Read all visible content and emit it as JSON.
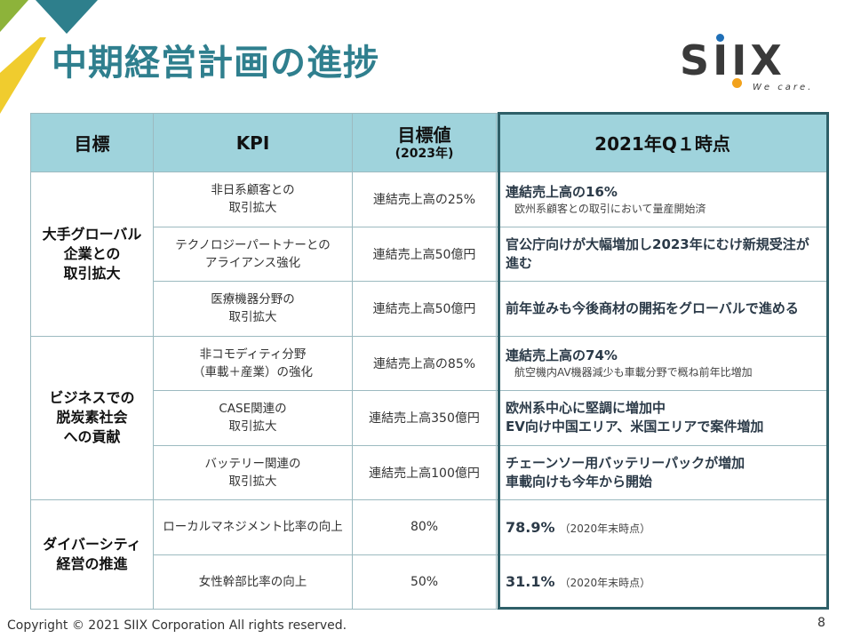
{
  "slide": {
    "title": "中期経営計画の進捗",
    "logo_text": "SIIX",
    "logo_tagline": "We care.",
    "copyright": "Copyright © 2021 SIIX Corporation All rights reserved.",
    "page_number": "8"
  },
  "colors": {
    "title": "#2f7f8e",
    "header_bg": "#9fd3dc",
    "accent_yellow": "#f0cc2e",
    "accent_green": "#8db33a",
    "accent_teal": "#2e7f8c"
  },
  "table": {
    "headers": {
      "goal": "目標",
      "kpi": "KPI",
      "target": "目標値",
      "target_year": "(2023年)",
      "status": "2021年Q１時点"
    },
    "groups": [
      {
        "goal": "大手グローバル\n企業との\n取引拡大",
        "rows": [
          {
            "kpi": "非日系顧客との\n取引拡大",
            "target": "連結売上高の25%",
            "status_main": "連結売上高の16%",
            "status_sub": "欧州系顧客との取引において量産開始済"
          },
          {
            "kpi": "テクノロジーパートナーとの\nアライアンス強化",
            "target": "連結売上高50億円",
            "status_main": "官公庁向けが大幅増加し2023年にむけ新規受注が進む",
            "status_sub": ""
          },
          {
            "kpi": "医療機器分野の\n取引拡大",
            "target": "連結売上高50億円",
            "status_main": "前年並みも今後商材の開拓をグローバルで進める",
            "status_sub": ""
          }
        ]
      },
      {
        "goal": "ビジネスでの\n脱炭素社会\nへの貢献",
        "rows": [
          {
            "kpi": "非コモディティ分野\n（車載＋産業）の強化",
            "target": "連結売上高の85%",
            "status_main": "連結売上高の74%",
            "status_sub": "航空機内AV機器減少も車載分野で概ね前年比増加"
          },
          {
            "kpi": "CASE関連の\n取引拡大",
            "target": "連結売上高350億円",
            "status_main": "欧州系中心に堅調に増加中",
            "status_sub": "",
            "status_main2": "EV向け中国エリア、米国エリアで案件増加"
          },
          {
            "kpi": "バッテリー関連の\n取引拡大",
            "target": "連結売上高100億円",
            "status_main": "チェーンソー用バッテリーパックが増加",
            "status_sub": "",
            "status_main2": "車載向けも今年から開始"
          }
        ]
      },
      {
        "goal": "ダイバーシティ\n経営の推進",
        "rows": [
          {
            "kpi": "ローカルマネジメント比率の向上",
            "target": "80%",
            "status_num": "78.9%",
            "status_note": "（2020年末時点）"
          },
          {
            "kpi": "女性幹部比率の向上",
            "target": "50%",
            "status_num": "31.1%",
            "status_note": "（2020年末時点）"
          }
        ]
      }
    ]
  }
}
